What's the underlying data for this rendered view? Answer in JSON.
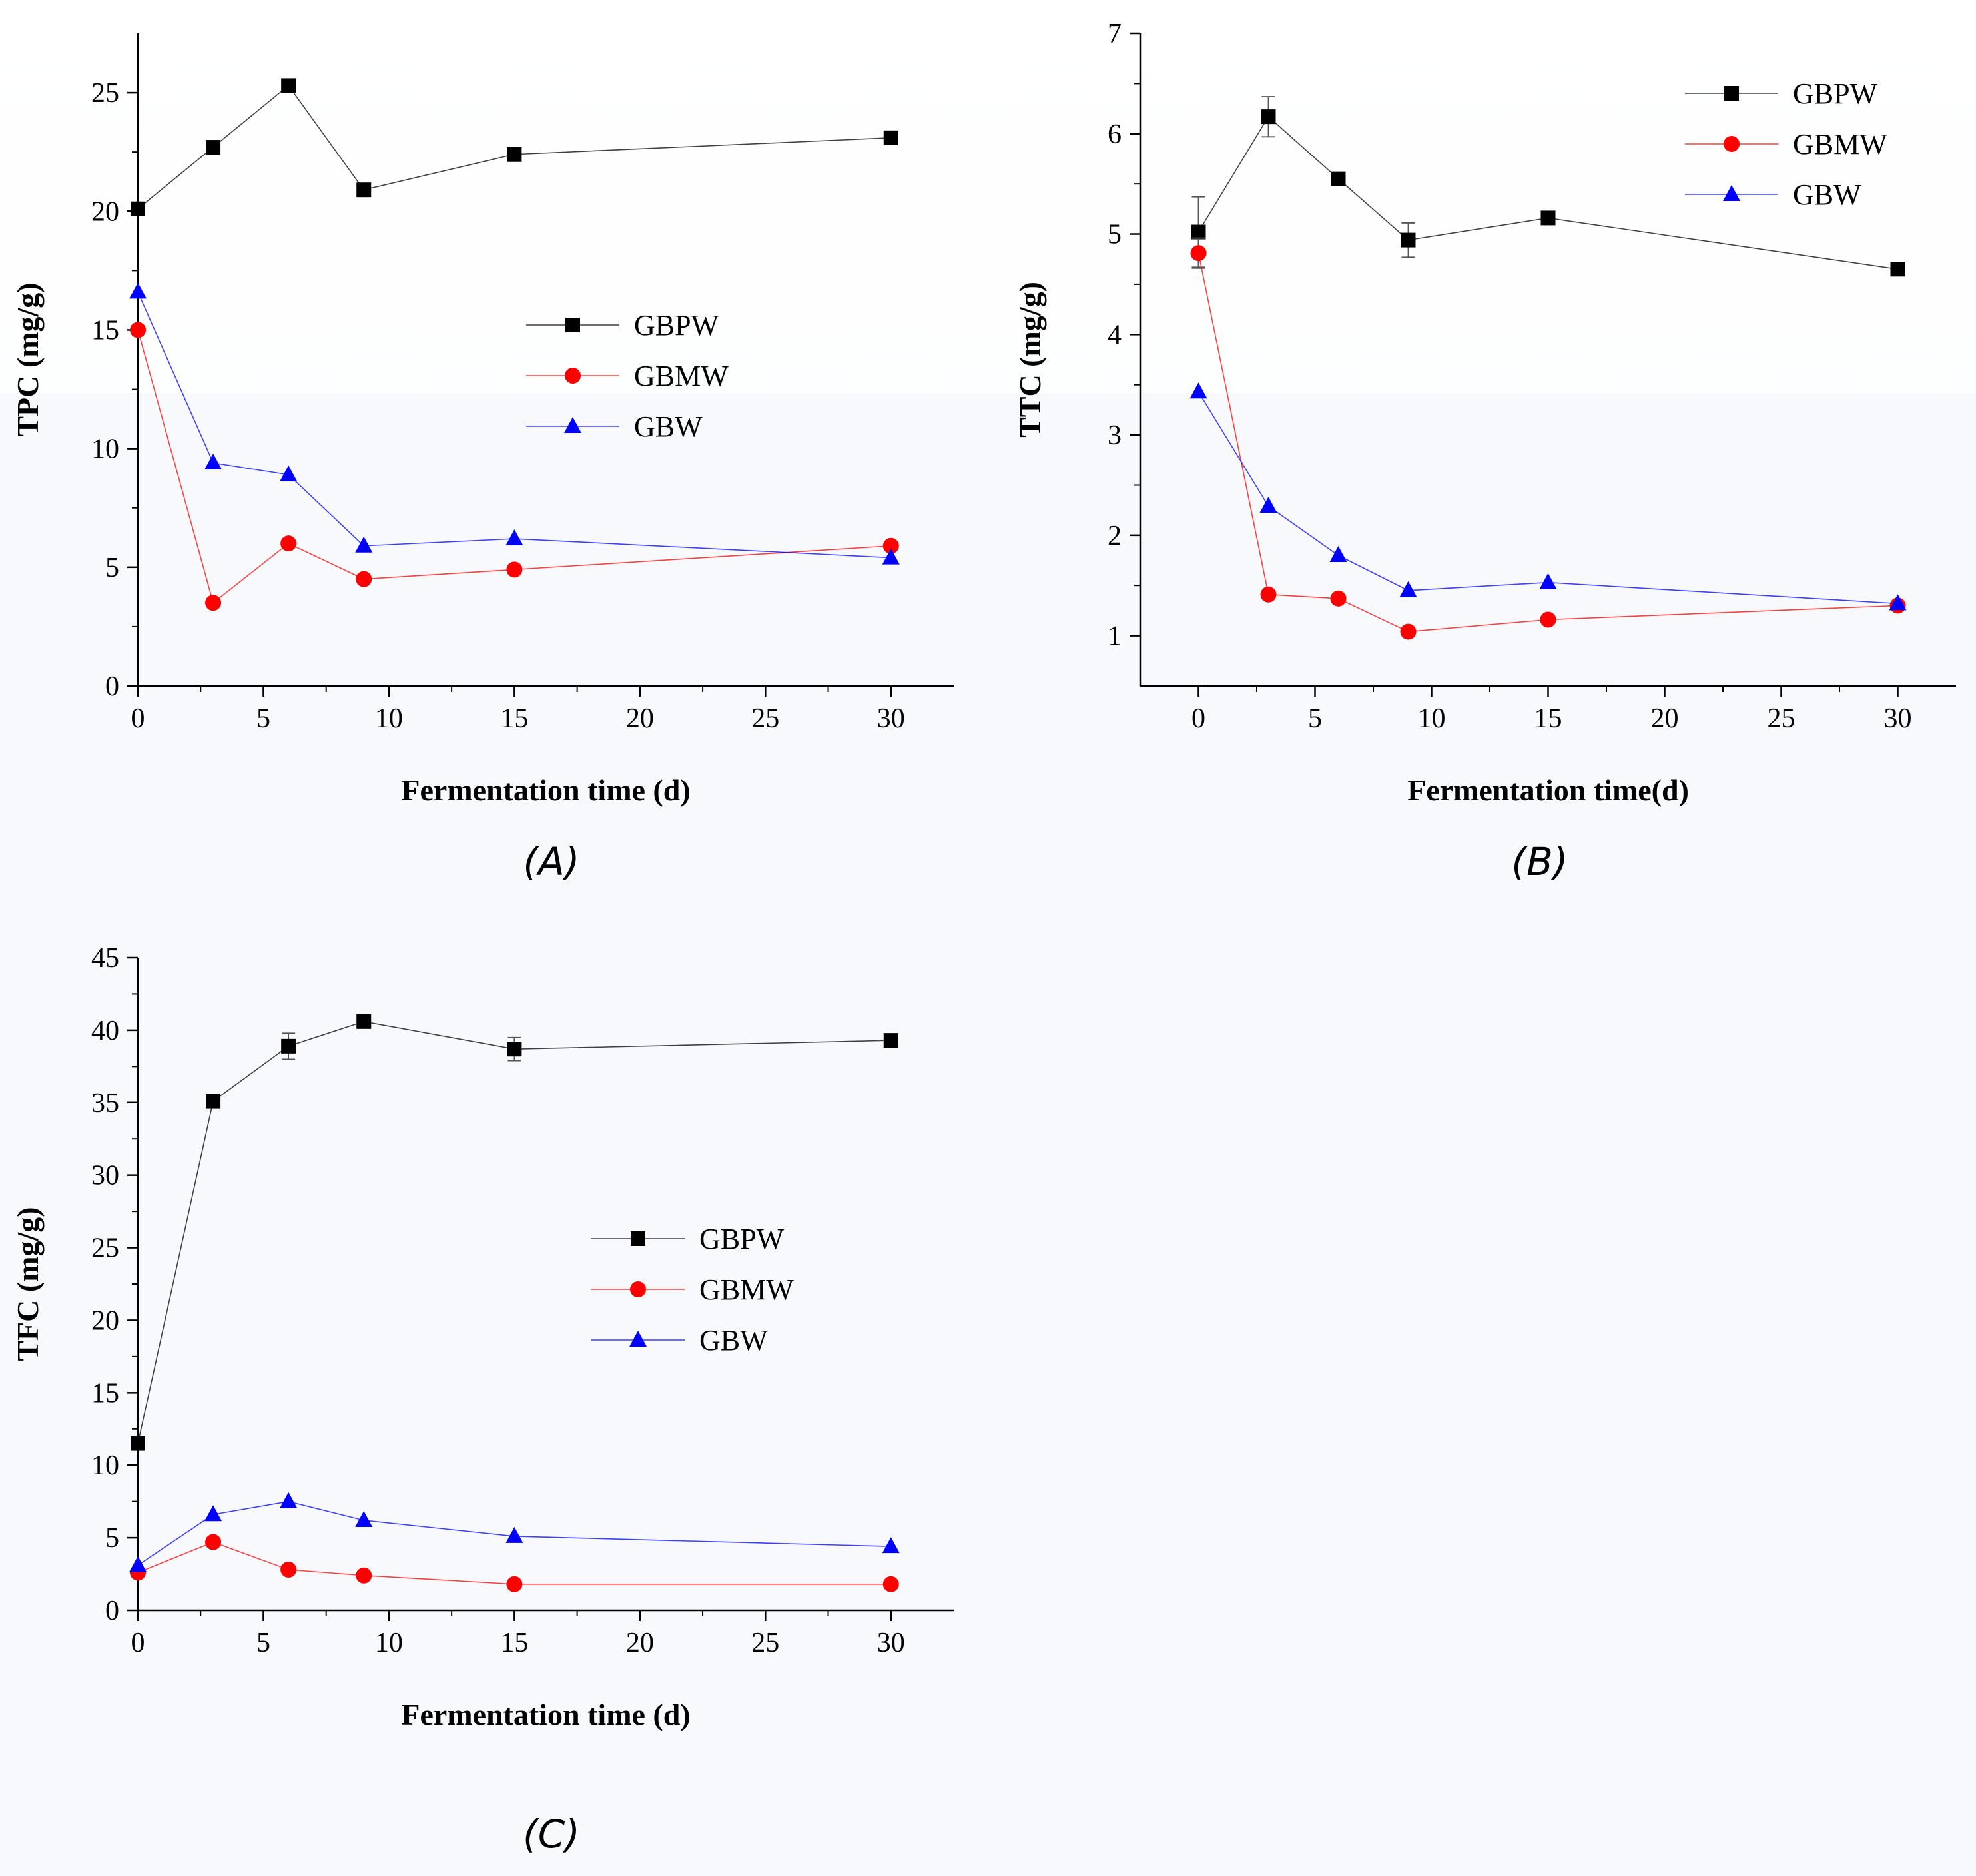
{
  "chart_data": [
    {
      "id": "A",
      "type": "line",
      "panel_label": "(A)",
      "xlabel": "Fermentation time (d)",
      "ylabel": "TPC (mg/g)",
      "xlim": [
        0,
        32.5
      ],
      "ylim": [
        0,
        27.5
      ],
      "xticks": [
        0,
        5,
        10,
        15,
        20,
        25,
        30
      ],
      "yticks": [
        0,
        5,
        10,
        15,
        20,
        25
      ],
      "legend_position": "center-right",
      "x": [
        0,
        3,
        6,
        9,
        15,
        30
      ],
      "series": [
        {
          "name": "GBPW",
          "color": "#000000",
          "marker": "square",
          "values": [
            20.1,
            22.7,
            25.3,
            20.9,
            22.4,
            23.1
          ],
          "errors": [
            0,
            0,
            0,
            0,
            0,
            0
          ]
        },
        {
          "name": "GBMW",
          "color": "#ff0000",
          "marker": "circle",
          "values": [
            15.0,
            3.5,
            6.0,
            4.5,
            4.9,
            5.9
          ],
          "errors": [
            0,
            0,
            0,
            0,
            0,
            0
          ]
        },
        {
          "name": "GBW",
          "color": "#0000ff",
          "marker": "triangle",
          "values": [
            16.6,
            9.4,
            8.9,
            5.9,
            6.2,
            5.4
          ],
          "errors": [
            0,
            0,
            0,
            0,
            0,
            0
          ]
        }
      ]
    },
    {
      "id": "B",
      "type": "line",
      "panel_label": "(B)",
      "xlabel": "Fermentation time(d)",
      "ylabel": "TTC (mg/g)",
      "xlim": [
        -2.5,
        32.5
      ],
      "ylim": [
        0.5,
        7
      ],
      "xticks": [
        0,
        5,
        10,
        15,
        20,
        25,
        30
      ],
      "yticks": [
        1,
        2,
        3,
        4,
        5,
        6,
        7
      ],
      "legend_position": "top-right",
      "x": [
        0,
        3,
        6,
        9,
        15,
        30
      ],
      "series": [
        {
          "name": "GBPW",
          "color": "#000000",
          "marker": "square",
          "values": [
            5.02,
            6.17,
            5.55,
            4.94,
            5.16,
            4.65
          ],
          "errors": [
            0.35,
            0.2,
            0,
            0.17,
            0,
            0
          ]
        },
        {
          "name": "GBMW",
          "color": "#ff0000",
          "marker": "circle",
          "values": [
            4.81,
            1.41,
            1.37,
            1.04,
            1.16,
            1.3
          ],
          "errors": [
            0.15,
            0,
            0,
            0,
            0,
            0
          ]
        },
        {
          "name": "GBW",
          "color": "#0000ff",
          "marker": "triangle",
          "values": [
            3.43,
            2.29,
            1.8,
            1.45,
            1.53,
            1.32
          ],
          "errors": [
            0,
            0,
            0,
            0,
            0,
            0
          ]
        }
      ]
    },
    {
      "id": "C",
      "type": "line",
      "panel_label": "(C)",
      "xlabel": "Fermentation time (d)",
      "ylabel": "TFC (mg/g)",
      "xlim": [
        0,
        32.5
      ],
      "ylim": [
        0,
        45
      ],
      "xticks": [
        0,
        5,
        10,
        15,
        20,
        25,
        30
      ],
      "yticks": [
        0,
        5,
        10,
        15,
        20,
        25,
        30,
        35,
        40,
        45
      ],
      "legend_position": "center-right",
      "x": [
        0,
        3,
        6,
        9,
        15,
        30
      ],
      "series": [
        {
          "name": "GBPW",
          "color": "#000000",
          "marker": "square",
          "values": [
            11.5,
            35.1,
            38.9,
            40.6,
            38.7,
            39.3
          ],
          "errors": [
            0,
            0,
            0.9,
            0,
            0.8,
            0
          ]
        },
        {
          "name": "GBMW",
          "color": "#ff0000",
          "marker": "circle",
          "values": [
            2.6,
            4.7,
            2.8,
            2.4,
            1.8,
            1.8
          ],
          "errors": [
            0,
            0,
            0,
            0,
            0,
            0
          ]
        },
        {
          "name": "GBW",
          "color": "#0000ff",
          "marker": "triangle",
          "values": [
            3.1,
            6.6,
            7.5,
            6.2,
            5.1,
            4.4
          ],
          "errors": [
            0,
            0,
            0,
            0,
            0,
            0
          ]
        }
      ]
    }
  ]
}
